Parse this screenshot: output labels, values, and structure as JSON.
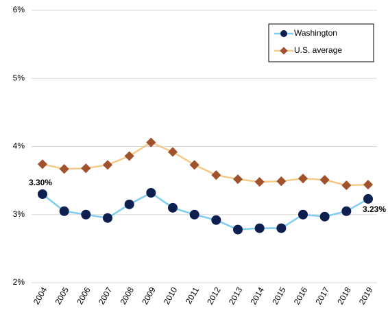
{
  "chart_data": {
    "type": "line",
    "categories": [
      "2004",
      "2005",
      "2006",
      "2007",
      "2008",
      "2009",
      "2010",
      "2011",
      "2012",
      "2013",
      "2014",
      "2015",
      "2016",
      "2017",
      "2018",
      "2019"
    ],
    "series": [
      {
        "name": "Washington",
        "color": "#0d1f4f",
        "line_color": "#7fcdf0",
        "values": [
          3.3,
          3.05,
          3.0,
          2.95,
          3.15,
          3.32,
          3.1,
          3.0,
          2.92,
          2.78,
          2.8,
          2.8,
          3.0,
          2.97,
          3.05,
          3.23
        ],
        "value_labels": [
          "3.30%",
          null,
          null,
          null,
          null,
          null,
          null,
          null,
          null,
          null,
          null,
          null,
          null,
          null,
          null,
          "3.23%"
        ]
      },
      {
        "name": "U.S. average",
        "color": "#a0522d",
        "line_color": "#f5c98a",
        "values": [
          3.74,
          3.67,
          3.68,
          3.73,
          3.86,
          4.06,
          3.92,
          3.73,
          3.58,
          3.52,
          3.48,
          3.49,
          3.53,
          3.51,
          3.43,
          3.44
        ]
      }
    ],
    "ylim": [
      2,
      6
    ],
    "yticks": [
      {
        "value": 2,
        "label": "2%"
      },
      {
        "value": 3,
        "label": "3%"
      },
      {
        "value": 4,
        "label": "4%"
      },
      {
        "value": 5,
        "label": "5%"
      },
      {
        "value": 6,
        "label": "6%"
      }
    ],
    "grid": true,
    "legend": "top-right"
  }
}
